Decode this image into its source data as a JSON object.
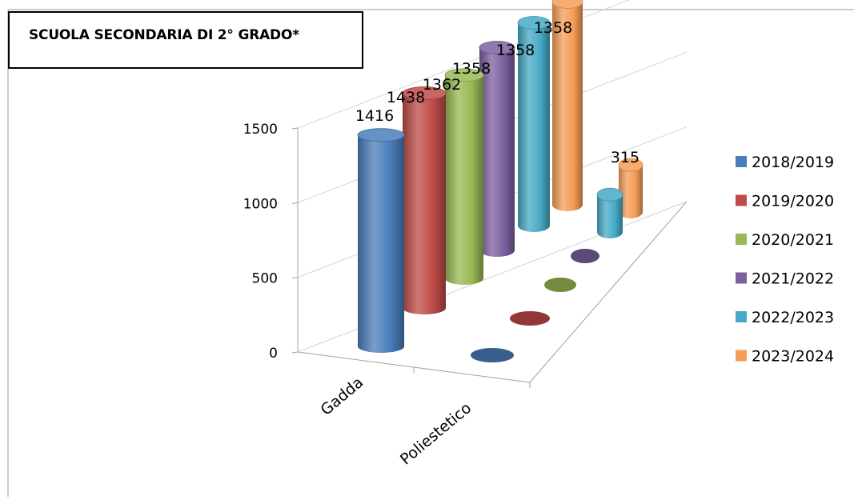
{
  "title": "SCUOLA SECONDARIA DI 2° GRADO*",
  "chart_data": {
    "type": "bar",
    "style": "3d-cylinder",
    "title": "SCUOLA SECONDARIA DI 2° GRADO*",
    "categories": [
      "Gadda",
      "Poliestetico"
    ],
    "series": [
      {
        "name": "2018/2019",
        "color": "#4a7ebb",
        "values": [
          1416,
          0
        ]
      },
      {
        "name": "2019/2020",
        "color": "#be4b48",
        "values": [
          1438,
          0
        ]
      },
      {
        "name": "2020/2021",
        "color": "#98b954",
        "values": [
          1362,
          0
        ]
      },
      {
        "name": "2021/2022",
        "color": "#7d60a0",
        "values": [
          1358,
          0
        ]
      },
      {
        "name": "2022/2023",
        "color": "#46aac5",
        "values": [
          1358,
          250
        ]
      },
      {
        "name": "2023/2024",
        "color": "#f59d56",
        "values": [
          1358,
          315
        ]
      }
    ],
    "data_labels": [
      {
        "series": 0,
        "category": 0,
        "text": "1416"
      },
      {
        "series": 1,
        "category": 0,
        "text": "1438"
      },
      {
        "series": 2,
        "category": 0,
        "text": "1362"
      },
      {
        "series": 3,
        "category": 0,
        "text": "1358"
      },
      {
        "series": 4,
        "category": 0,
        "text": "1358"
      },
      {
        "series": 5,
        "category": 0,
        "text": "1358"
      },
      {
        "series": 5,
        "category": 1,
        "text": "315"
      }
    ],
    "yticks": [
      "0",
      "500",
      "1000",
      "1500"
    ],
    "ylim": [
      0,
      1500
    ],
    "grid": true,
    "legend": "right"
  }
}
